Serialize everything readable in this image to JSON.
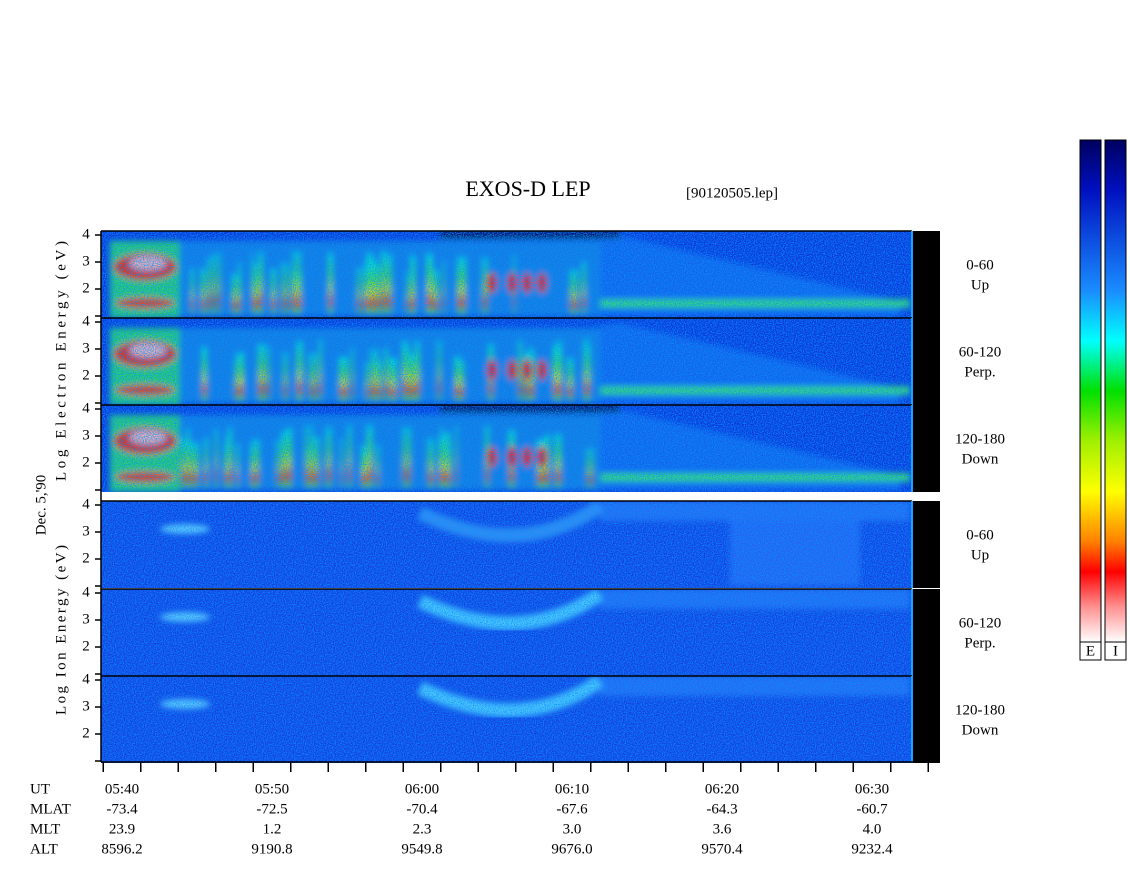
{
  "title": "EXOS-D LEP",
  "file": "[90120505.lep]",
  "date": "Dec. 5,'90",
  "electron": {
    "axis_label": "Log Electron Energy (eV)",
    "ticks": [
      "4",
      "3",
      "2"
    ],
    "panels": [
      {
        "angle": "0-60",
        "direction": "Up"
      },
      {
        "angle": "60-120",
        "direction": "Perp."
      },
      {
        "angle": "120-180",
        "direction": "Down"
      }
    ]
  },
  "ion": {
    "axis_label": "Log Ion Energy (eV)",
    "ticks": [
      "4",
      "3",
      "2"
    ],
    "panels": [
      {
        "angle": "0-60",
        "direction": "Up"
      },
      {
        "angle": "60-120",
        "direction": "Perp."
      },
      {
        "angle": "120-180",
        "direction": "Down"
      }
    ]
  },
  "ephemeris": [
    {
      "name": "UT",
      "values": [
        "05:40",
        "05:50",
        "06:00",
        "06:10",
        "06:20",
        "06:30"
      ]
    },
    {
      "name": "MLAT",
      "values": [
        "-73.4",
        "-72.5",
        "-70.4",
        "-67.6",
        "-64.3",
        "-60.7"
      ]
    },
    {
      "name": "MLT",
      "values": [
        "23.9",
        "1.2",
        "2.3",
        "3.0",
        "3.6",
        "4.0"
      ]
    },
    {
      "name": "ALT",
      "values": [
        "8596.2",
        "9190.8",
        "9549.8",
        "9676.0",
        "9570.4",
        "9232.4"
      ]
    }
  ],
  "colorbars": [
    "E",
    "I"
  ]
}
